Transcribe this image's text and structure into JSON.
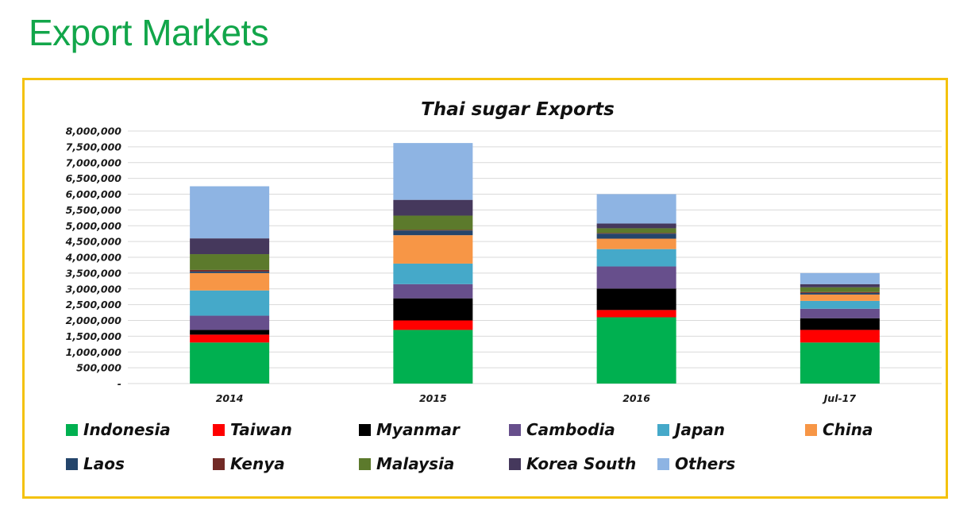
{
  "page": {
    "title": "Export Markets"
  },
  "colors": {
    "title": "#12a64a",
    "frame": "#f4c20d",
    "grid": "#d9d9d9"
  },
  "chart_data": {
    "type": "bar",
    "stacked": true,
    "title": "Thai sugar Exports",
    "xlabel": "",
    "ylabel": "",
    "ylim": [
      0,
      8000000
    ],
    "y_ticks": [
      0,
      500000,
      1000000,
      1500000,
      2000000,
      2500000,
      3000000,
      3500000,
      4000000,
      4500000,
      5000000,
      5500000,
      6000000,
      6500000,
      7000000,
      7500000,
      8000000
    ],
    "y_tick_labels": [
      "-",
      "500,000",
      "1,000,000",
      "1,500,000",
      "2,000,000",
      "2,500,000",
      "3,000,000",
      "3,500,000",
      "4,000,000",
      "4,500,000",
      "5,000,000",
      "5,500,000",
      "6,000,000",
      "6,500,000",
      "7,000,000",
      "7,500,000",
      "8,000,000"
    ],
    "grid": true,
    "legend_position": "bottom",
    "categories": [
      "2014",
      "2015",
      "2016",
      "Jul-17"
    ],
    "series": [
      {
        "name": "Indonesia",
        "color": "#00b050",
        "values": [
          1300000,
          1700000,
          2100000,
          1300000
        ]
      },
      {
        "name": "Taiwan",
        "color": "#ff0000",
        "values": [
          250000,
          300000,
          230000,
          400000
        ]
      },
      {
        "name": "Myanmar",
        "color": "#000000",
        "values": [
          150000,
          700000,
          680000,
          370000
        ]
      },
      {
        "name": "Cambodia",
        "color": "#674f8c",
        "values": [
          450000,
          450000,
          700000,
          300000
        ]
      },
      {
        "name": "Japan",
        "color": "#45a9c9",
        "values": [
          800000,
          650000,
          550000,
          250000
        ]
      },
      {
        "name": "China",
        "color": "#f79646",
        "values": [
          550000,
          900000,
          330000,
          200000
        ]
      },
      {
        "name": "Laos",
        "color": "#24456b",
        "values": [
          50000,
          150000,
          160000,
          50000
        ]
      },
      {
        "name": "Kenya",
        "color": "#722a26",
        "values": [
          50000,
          20000,
          20000,
          30000
        ]
      },
      {
        "name": "Malaysia",
        "color": "#5c7a2c",
        "values": [
          500000,
          450000,
          150000,
          150000
        ]
      },
      {
        "name": "Korea South",
        "color": "#45385c",
        "values": [
          500000,
          500000,
          150000,
          100000
        ]
      },
      {
        "name": "Others",
        "color": "#8eb4e3",
        "values": [
          1650000,
          1800000,
          930000,
          350000
        ]
      }
    ]
  }
}
